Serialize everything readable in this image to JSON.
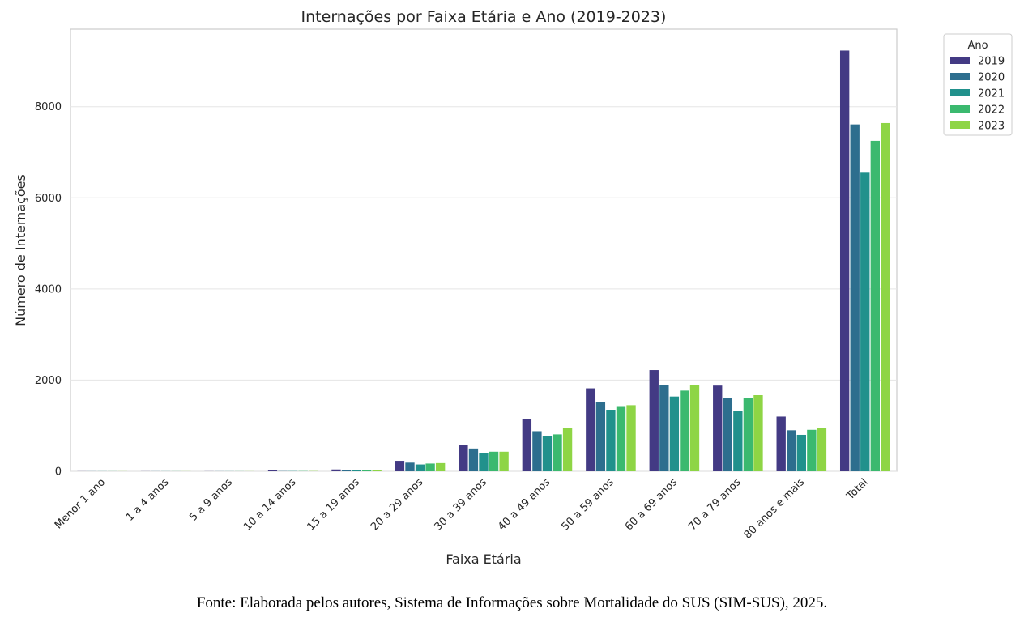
{
  "source_note": "Fonte: Elaborada pelos autores, Sistema de Informações sobre Mortalidade do SUS (SIM-SUS), 2025.",
  "colors": [
    "#433a84",
    "#2d6e8e",
    "#21918c",
    "#3bb96f",
    "#8ed545"
  ],
  "chart_data": {
    "type": "bar",
    "title": "Internações por Faixa Etária e Ano (2019-2023)",
    "xlabel": "Faixa Etária",
    "ylabel": "Número de Internações",
    "ylim": [
      0,
      9700
    ],
    "yticks": [
      0,
      2000,
      4000,
      6000,
      8000
    ],
    "grid": true,
    "legend_title": "Ano",
    "legend_position": "outside top-right",
    "categories": [
      "Menor 1 ano",
      "1 a 4 anos",
      "5 a 9 anos",
      "10 a 14 anos",
      "15 a 19 anos",
      "20 a 29 anos",
      "30 a 39 anos",
      "40 a 49 anos",
      "50 a 59 anos",
      "60 a 69 anos",
      "70 a 79 anos",
      "80 anos e mais",
      "Total"
    ],
    "series": [
      {
        "name": "2019",
        "values": [
          2,
          2,
          2,
          25,
          40,
          230,
          580,
          1150,
          1820,
          2220,
          1880,
          1200,
          9230
        ]
      },
      {
        "name": "2020",
        "values": [
          2,
          2,
          2,
          5,
          20,
          190,
          500,
          880,
          1520,
          1900,
          1600,
          900,
          7610
        ]
      },
      {
        "name": "2021",
        "values": [
          2,
          2,
          2,
          5,
          20,
          150,
          400,
          780,
          1350,
          1640,
          1330,
          800,
          6550
        ]
      },
      {
        "name": "2022",
        "values": [
          2,
          2,
          2,
          5,
          20,
          170,
          430,
          810,
          1430,
          1770,
          1600,
          910,
          7250
        ]
      },
      {
        "name": "2023",
        "values": [
          2,
          2,
          2,
          5,
          20,
          180,
          430,
          950,
          1450,
          1900,
          1670,
          950,
          7640
        ]
      }
    ]
  }
}
